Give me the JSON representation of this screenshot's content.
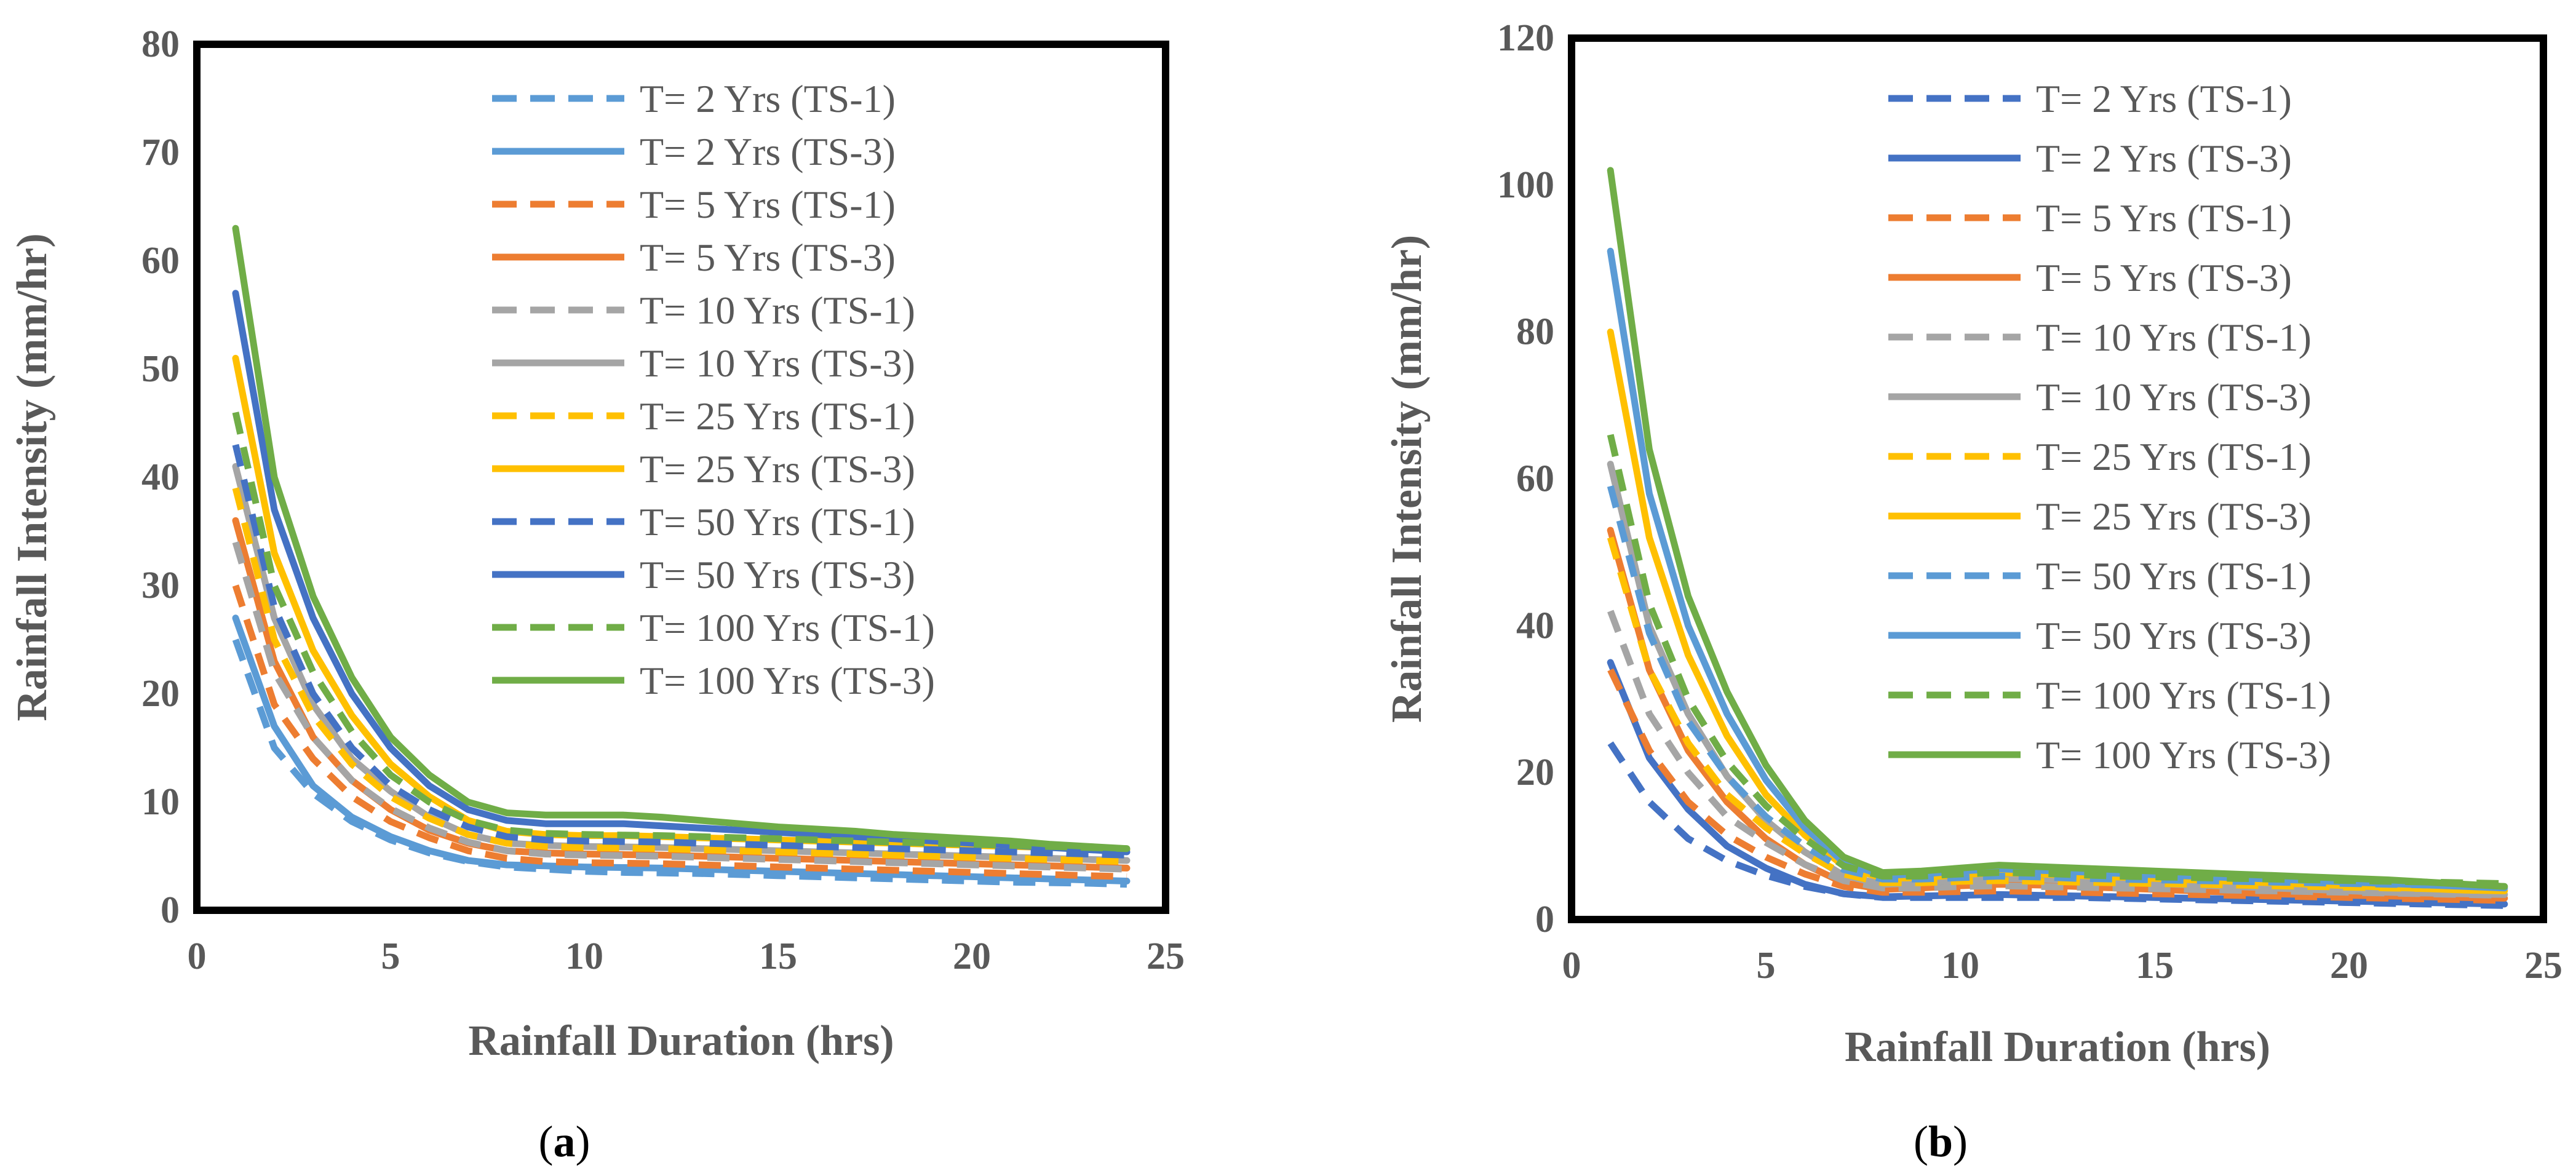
{
  "chart_data": [
    {
      "type": "line",
      "panel_label": "(a)",
      "panel_letter": "a",
      "xlabel": "Rainfall Duration (hrs)",
      "ylabel": "Rainfall Intensity (mm/hr)",
      "xlim": [
        0,
        25
      ],
      "ylim": [
        0,
        80
      ],
      "xticks": [
        0,
        5,
        10,
        15,
        20,
        25
      ],
      "yticks": [
        0,
        10,
        20,
        30,
        40,
        50,
        60,
        70,
        80
      ],
      "grid": false,
      "legend_position": "top-right",
      "x": [
        1,
        2,
        3,
        4,
        5,
        6,
        7,
        8,
        9,
        10,
        11,
        12,
        13,
        14,
        15,
        16,
        17,
        18,
        19,
        20,
        21,
        22,
        23,
        24
      ],
      "series": [
        {
          "name": "T= 2 Yrs (TS-1)",
          "color": "#5b9bd5",
          "dash": true,
          "values": [
            25,
            15,
            10.8,
            8.2,
            6.5,
            5.3,
            4.5,
            4,
            3.8,
            3.6,
            3.5,
            3.45,
            3.4,
            3.3,
            3.2,
            3.1,
            3.0,
            2.9,
            2.8,
            2.7,
            2.6,
            2.55,
            2.5,
            2.4
          ]
        },
        {
          "name": "T= 2 Yrs (TS-3)",
          "color": "#5b9bd5",
          "dash": false,
          "values": [
            27,
            17,
            11.5,
            8.6,
            6.8,
            5.5,
            4.6,
            4.2,
            4.1,
            4.0,
            3.95,
            3.9,
            3.8,
            3.7,
            3.6,
            3.5,
            3.4,
            3.3,
            3.2,
            3.1,
            3.0,
            2.9,
            2.8,
            2.7
          ]
        },
        {
          "name": "T= 5 Yrs (TS-1)",
          "color": "#ed7d31",
          "dash": true,
          "values": [
            30,
            19,
            14,
            10.5,
            8.2,
            6.7,
            5.5,
            4.8,
            4.5,
            4.4,
            4.35,
            4.3,
            4.2,
            4.1,
            4.0,
            3.9,
            3.8,
            3.7,
            3.6,
            3.5,
            3.4,
            3.3,
            3.2,
            3.1
          ]
        },
        {
          "name": "T= 5 Yrs (TS-3)",
          "color": "#ed7d31",
          "dash": false,
          "values": [
            36,
            23,
            16,
            12,
            9.3,
            7.4,
            6.2,
            5.5,
            5.3,
            5.2,
            5.15,
            5.1,
            5.0,
            4.9,
            4.8,
            4.7,
            4.6,
            4.5,
            4.4,
            4.3,
            4.2,
            4.1,
            4.0,
            3.9
          ]
        },
        {
          "name": "T= 10 Yrs (TS-1)",
          "color": "#a5a5a5",
          "dash": true,
          "values": [
            34,
            22,
            16,
            12,
            9.4,
            7.6,
            6.3,
            5.5,
            5.2,
            5.1,
            5.05,
            5.0,
            4.9,
            4.8,
            4.7,
            4.6,
            4.5,
            4.4,
            4.3,
            4.2,
            4.1,
            4.0,
            3.9,
            3.8
          ]
        },
        {
          "name": "T= 10 Yrs (TS-3)",
          "color": "#a5a5a5",
          "dash": false,
          "values": [
            41,
            27,
            19,
            14,
            11,
            8.6,
            7.0,
            6.2,
            6.0,
            5.9,
            5.85,
            5.8,
            5.7,
            5.6,
            5.5,
            5.4,
            5.3,
            5.2,
            5.1,
            5.0,
            4.9,
            4.8,
            4.7,
            4.6
          ]
        },
        {
          "name": "T= 25 Yrs (TS-1)",
          "color": "#ffc000",
          "dash": true,
          "values": [
            39,
            25,
            18,
            13.5,
            10.5,
            8.5,
            7.0,
            6.2,
            5.9,
            5.8,
            5.75,
            5.7,
            5.6,
            5.5,
            5.4,
            5.3,
            5.2,
            5.1,
            5.0,
            4.9,
            4.8,
            4.7,
            4.6,
            4.5
          ]
        },
        {
          "name": "T= 25 Yrs (TS-3)",
          "color": "#ffc000",
          "dash": false,
          "values": [
            51,
            33,
            24,
            18,
            13.5,
            10.5,
            8.3,
            7.3,
            7.0,
            6.9,
            6.9,
            6.8,
            6.7,
            6.6,
            6.5,
            6.4,
            6.3,
            6.2,
            6.1,
            6.0,
            5.9,
            5.8,
            5.7,
            5.6
          ]
        },
        {
          "name": "T= 50 Yrs (TS-1)",
          "color": "#4472c4",
          "dash": true,
          "values": [
            43,
            28,
            20,
            15,
            11.5,
            9.3,
            7.7,
            6.8,
            6.5,
            6.4,
            6.35,
            6.3,
            6.2,
            6.1,
            6.0,
            5.9,
            5.8,
            5.7,
            5.6,
            5.5,
            5.4,
            5.3,
            5.2,
            5.1
          ]
        },
        {
          "name": "T= 50 Yrs (TS-3)",
          "color": "#4472c4",
          "dash": false,
          "values": [
            57,
            37,
            27,
            20,
            15,
            11.5,
            9.3,
            8.3,
            8.0,
            8.0,
            8.0,
            7.8,
            7.6,
            7.4,
            7.2,
            7.0,
            6.8,
            6.6,
            6.4,
            6.2,
            6.0,
            5.8,
            5.6,
            5.4
          ]
        },
        {
          "name": "T= 100 Yrs (TS-1)",
          "color": "#70ad47",
          "dash": true,
          "values": [
            46,
            30,
            22,
            16.5,
            12.5,
            10,
            8.3,
            7.4,
            7.1,
            7.0,
            6.95,
            6.9,
            6.8,
            6.7,
            6.6,
            6.5,
            6.4,
            6.3,
            6.2,
            6.1,
            6.0,
            5.9,
            5.8,
            5.7
          ]
        },
        {
          "name": "T= 100 Yrs (TS-3)",
          "color": "#70ad47",
          "dash": false,
          "values": [
            63,
            40,
            29,
            21.5,
            16,
            12.5,
            10,
            9,
            8.8,
            8.8,
            8.8,
            8.6,
            8.3,
            8.0,
            7.7,
            7.5,
            7.3,
            7.0,
            6.8,
            6.6,
            6.4,
            6.1,
            5.9,
            5.7
          ]
        }
      ]
    },
    {
      "type": "line",
      "panel_label": "(b)",
      "panel_letter": "b",
      "xlabel": "Rainfall Duration (hrs)",
      "ylabel": "Rainfall Intensity (mm/hr)",
      "xlim": [
        0,
        25
      ],
      "ylim": [
        0,
        120
      ],
      "xticks": [
        0,
        5,
        10,
        15,
        20,
        25
      ],
      "yticks": [
        0,
        20,
        40,
        60,
        80,
        100,
        120
      ],
      "grid": false,
      "legend_position": "top-right",
      "x": [
        1,
        2,
        3,
        4,
        5,
        6,
        7,
        8,
        9,
        10,
        11,
        12,
        13,
        14,
        15,
        16,
        17,
        18,
        19,
        20,
        21,
        22,
        23,
        24
      ],
      "series": [
        {
          "name": "T= 2 Yrs (TS-1)",
          "color": "#4472c4",
          "dash": true,
          "values": [
            24,
            16,
            11,
            8,
            6,
            4.5,
            3.5,
            3,
            3,
            3,
            3,
            3,
            3,
            2.9,
            2.8,
            2.7,
            2.6,
            2.5,
            2.4,
            2.3,
            2.2,
            2.1,
            2.0,
            1.9
          ]
        },
        {
          "name": "T= 2 Yrs (TS-3)",
          "color": "#4472c4",
          "dash": false,
          "values": [
            35,
            22,
            15,
            10,
            7,
            4.8,
            3.5,
            3.1,
            3.2,
            3.3,
            3.4,
            3.3,
            3.2,
            3.1,
            3.0,
            2.9,
            2.8,
            2.7,
            2.6,
            2.5,
            2.4,
            2.3,
            2.2,
            2.1
          ]
        },
        {
          "name": "T= 5 Yrs (TS-1)",
          "color": "#ed7d31",
          "dash": true,
          "values": [
            34,
            23,
            16,
            11.5,
            8.5,
            6.2,
            4.5,
            3.7,
            3.7,
            3.8,
            3.9,
            3.8,
            3.7,
            3.6,
            3.5,
            3.4,
            3.3,
            3.2,
            3.1,
            3.0,
            2.9,
            2.8,
            2.7,
            2.6
          ]
        },
        {
          "name": "T= 5 Yrs (TS-3)",
          "color": "#ed7d31",
          "dash": false,
          "values": [
            53,
            34,
            23,
            16,
            11,
            7.5,
            5.0,
            4.1,
            4.3,
            4.6,
            4.8,
            4.7,
            4.5,
            4.3,
            4.1,
            3.9,
            3.7,
            3.5,
            3.4,
            3.3,
            3.2,
            3.1,
            3.0,
            2.9
          ]
        },
        {
          "name": "T= 10 Yrs (TS-1)",
          "color": "#a5a5a5",
          "dash": true,
          "values": [
            42,
            28,
            20,
            14,
            10.5,
            7.5,
            5.3,
            4.3,
            4.3,
            4.5,
            4.6,
            4.5,
            4.4,
            4.3,
            4.2,
            4.1,
            4.0,
            3.9,
            3.8,
            3.7,
            3.6,
            3.5,
            3.4,
            3.3
          ]
        },
        {
          "name": "T= 10 Yrs (TS-3)",
          "color": "#a5a5a5",
          "dash": false,
          "values": [
            62,
            40,
            28,
            19.5,
            13.5,
            9.2,
            6.0,
            4.8,
            5.0,
            5.3,
            5.6,
            5.5,
            5.3,
            5.1,
            4.9,
            4.7,
            4.5,
            4.3,
            4.1,
            3.9,
            3.7,
            3.6,
            3.5,
            3.4
          ]
        },
        {
          "name": "T= 25 Yrs (TS-1)",
          "color": "#ffc000",
          "dash": true,
          "values": [
            52,
            34,
            24,
            17,
            12.5,
            9,
            6.2,
            5,
            5,
            5.2,
            5.3,
            5.2,
            5.1,
            5.0,
            4.9,
            4.8,
            4.7,
            4.6,
            4.5,
            4.4,
            4.3,
            4.2,
            4.1,
            4.0
          ]
        },
        {
          "name": "T= 25 Yrs (TS-3)",
          "color": "#ffc000",
          "dash": false,
          "values": [
            80,
            52,
            36,
            25,
            17,
            11.5,
            7.3,
            5.6,
            5.7,
            6.1,
            6.4,
            6.2,
            6.0,
            5.8,
            5.6,
            5.4,
            5.2,
            5.0,
            4.8,
            4.6,
            4.4,
            4.2,
            4.0,
            3.9
          ]
        },
        {
          "name": "T= 50 Yrs (TS-1)",
          "color": "#5b9bd5",
          "dash": true,
          "values": [
            59,
            39,
            27,
            19.5,
            14,
            10,
            6.8,
            5.5,
            5.5,
            5.7,
            5.9,
            5.8,
            5.6,
            5.5,
            5.4,
            5.3,
            5.2,
            5.1,
            5.0,
            4.9,
            4.8,
            4.7,
            4.6,
            4.5
          ]
        },
        {
          "name": "T= 50 Yrs (TS-3)",
          "color": "#5b9bd5",
          "dash": false,
          "values": [
            91,
            58,
            40,
            28,
            19,
            12.5,
            7.8,
            6.0,
            6.2,
            6.6,
            6.9,
            6.7,
            6.5,
            6.3,
            6.1,
            5.9,
            5.7,
            5.5,
            5.3,
            5.1,
            4.9,
            4.7,
            4.5,
            4.3
          ]
        },
        {
          "name": "T= 100 Yrs (TS-1)",
          "color": "#70ad47",
          "dash": true,
          "values": [
            66,
            43,
            30,
            21.5,
            15.5,
            11,
            7.3,
            5.9,
            5.9,
            6.2,
            6.4,
            6.3,
            6.1,
            5.9,
            5.8,
            5.7,
            5.6,
            5.5,
            5.4,
            5.3,
            5.2,
            5.1,
            5.0,
            4.9
          ]
        },
        {
          "name": "T= 100 Yrs (TS-3)",
          "color": "#70ad47",
          "dash": false,
          "values": [
            102,
            64,
            44,
            31,
            21,
            13.5,
            8.5,
            6.4,
            6.6,
            7.0,
            7.4,
            7.2,
            7.0,
            6.8,
            6.6,
            6.4,
            6.2,
            6.0,
            5.8,
            5.6,
            5.4,
            5.1,
            4.8,
            4.5
          ]
        }
      ]
    }
  ]
}
